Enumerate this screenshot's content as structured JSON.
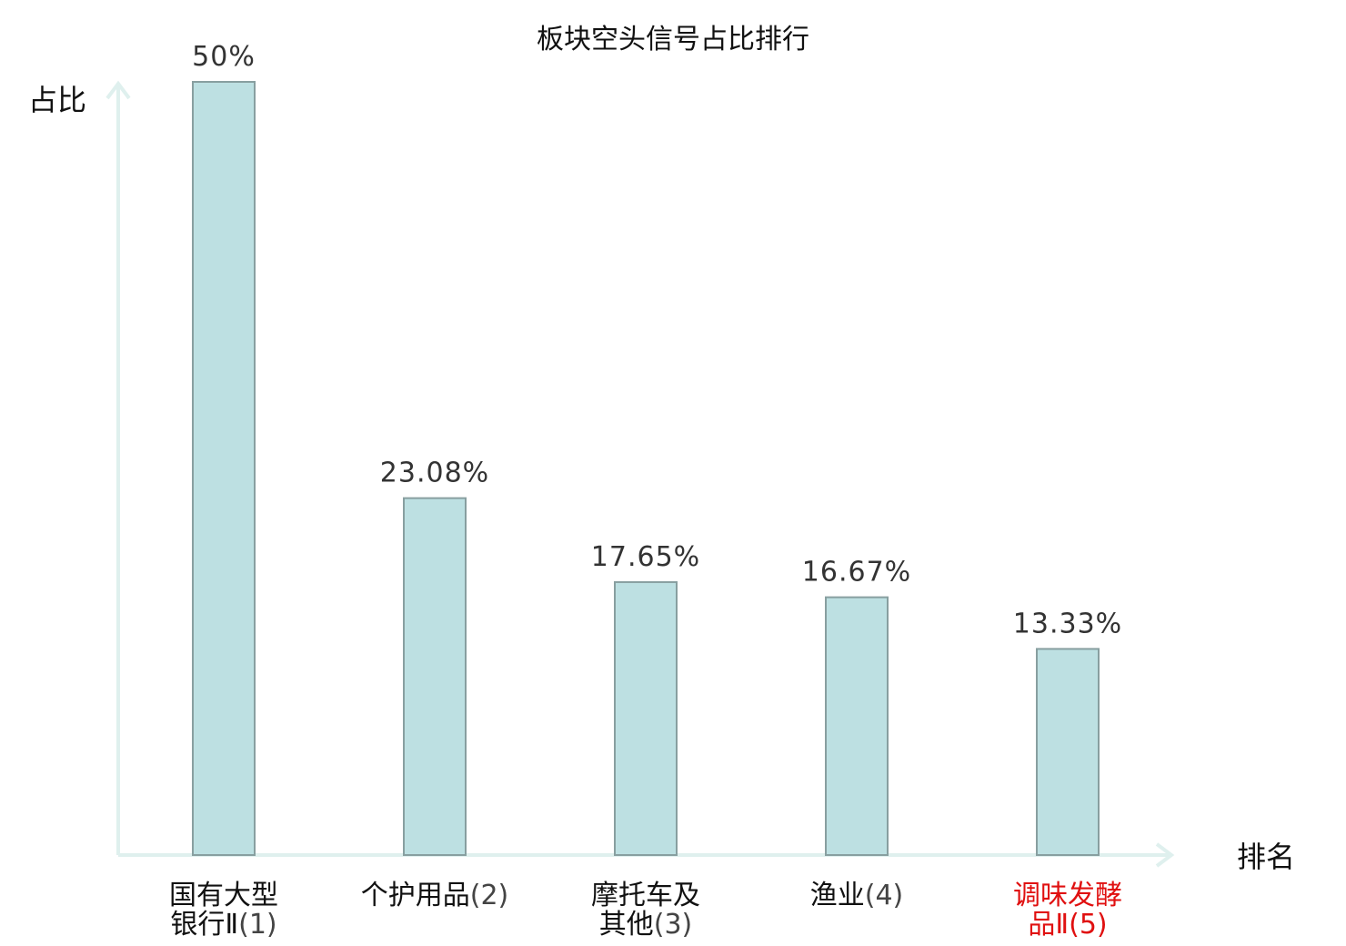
{
  "chart_data": {
    "type": "bar",
    "title": "板块空头信号占比排行",
    "ylabel": "占比",
    "xlabel": "排名",
    "ylim": [
      0,
      50
    ],
    "grid": false,
    "categories": [
      {
        "lines": [
          "国有大型",
          "银行Ⅱ"
        ],
        "rank": "(1)"
      },
      {
        "lines": [
          "个护用品"
        ],
        "rank": "(2)"
      },
      {
        "lines": [
          "摩托车及",
          "其他"
        ],
        "rank": "(3)"
      },
      {
        "lines": [
          "渔业"
        ],
        "rank": "(4)"
      },
      {
        "lines": [
          "调味发酵",
          "品Ⅱ"
        ],
        "rank": "(5)"
      }
    ],
    "values": [
      50,
      23.08,
      17.65,
      16.67,
      13.33
    ],
    "value_labels": [
      "50%",
      "23.08%",
      "17.65%",
      "16.67%",
      "13.33%"
    ],
    "highlight_index": 4,
    "colors": {
      "bar_fill": "#bde0e2",
      "bar_stroke": "#889fa0",
      "axis": "#dff0ee",
      "highlight_text": "#e01010"
    }
  }
}
